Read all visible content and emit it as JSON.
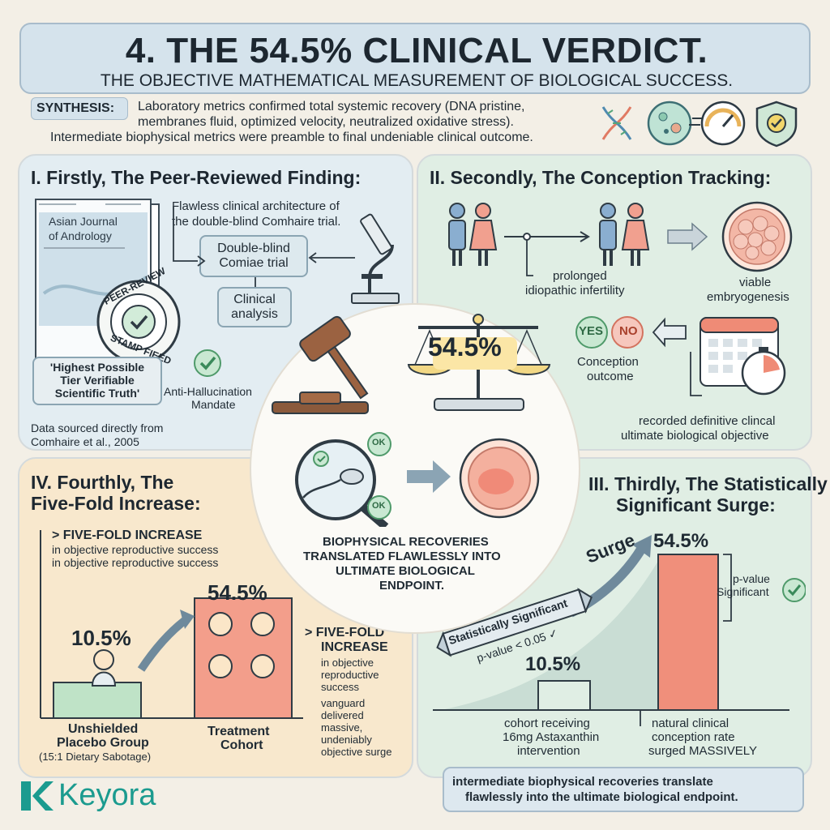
{
  "header": {
    "title": "4. THE 54.5% CLINICAL VERDICT.",
    "subtitle": "THE OBJECTIVE MATHEMATICAL MEASUREMENT OF BIOLOGICAL SUCCESS."
  },
  "synthesis": {
    "label": "SYNTHESIS:",
    "line1": "Laboratory metrics confirmed total systemic recovery (DNA pristine,",
    "line2": "membranes fluid, optimized velocity, neutralized oxidative stress).",
    "line3": "Intermediate biophysical metrics were preamble to final undeniable clinical outcome.",
    "icons": [
      "dna-icon",
      "cell-icon",
      "speedometer-icon",
      "shield-check-icon"
    ]
  },
  "q1": {
    "title": "I. Firstly, The Peer-Reviewed Finding:",
    "journal_line1": "Asian Journal",
    "journal_line2": "of Andrology",
    "stamp_top": "PEER-REVIEW",
    "stamp_bottom": "STAMP FIEED",
    "architecture_line1": "Flawless clinical architecture of",
    "architecture_line2": "the double-blind Comhaire trial.",
    "trial_line1": "Double-blind",
    "trial_line2": "Comiae trial",
    "analysis_line1": "Clinical",
    "analysis_line2": "analysis",
    "quote_line1": "'Highest Possible",
    "quote_line2": "Tier Verifiable",
    "quote_line3": "Scientific Truth'",
    "mandate_line1": "Anti-Hallucination",
    "mandate_line2": "Mandate",
    "source_line1": "Data sourced directly from",
    "source_line2": "Comhaire et al., 2005"
  },
  "q2": {
    "title": "II. Secondly, The Conception Tracking:",
    "infertility_line1": "prolonged",
    "infertility_line2": "idiopathic infertility",
    "embryo_line1": "viable",
    "embryo_line2": "embryogenesis",
    "yes": "YES",
    "no": "NO",
    "outcome_line1": "Conception",
    "outcome_line2": "outcome",
    "recorded_line1": "recorded definitive clincal",
    "recorded_line2": "ultimate biological objective"
  },
  "center": {
    "scale_value": "54.5%",
    "ok": "OK",
    "caption_line1": "BIOPHYSICAL RECOVERIES",
    "caption_line2": "TRANSLATED FLAWLESSLY INTO",
    "caption_line3": "ULTIMATE BIOLOGICAL",
    "caption_line4": "ENDPOINT."
  },
  "q4": {
    "title_line1": "IV. Fourthly, The",
    "title_line2": "Five-Fold Increase:",
    "increase_head": "> FIVE-FOLD INCREASE",
    "increase_sub1": "in objective reproductive success",
    "increase_sub2": "in objective reproductive success",
    "placebo_value": "10.5%",
    "treatment_value": "54.5%",
    "placebo_line1": "Unshielded",
    "placebo_line2": "Placebo Group",
    "placebo_line3": "(15:1 Dietary Sabotage)",
    "treatment_line1": "Treatment",
    "treatment_line2": "Cohort",
    "side_head1": "> FIVE-FOLD",
    "side_head2": "INCREASE",
    "side_sub1": "in objective",
    "side_sub2": "reproductive",
    "side_sub3": "success",
    "side_b1": "vanguard",
    "side_b2": "delivered",
    "side_b3": "massive,",
    "side_b4": "undeniably",
    "side_b5": "objective surge"
  },
  "q3": {
    "title_line1": "III. Thirdly, The Statistically",
    "title_line2": "Significant Surge:",
    "surge": "Surge",
    "banner": "Statistically Significant",
    "pvalue": "p-value < 0.05 ✓",
    "high_value": "54.5%",
    "low_value": "10.5%",
    "pv_label1": "p-value",
    "pv_label2": "Significant",
    "cohort_line1": "cohort receiving",
    "cohort_line2": "16mg Astaxanthin",
    "cohort_line3": "intervention",
    "natural_line1": "natural clinical",
    "natural_line2": "conception rate",
    "natural_line3": "surged MASSIVELY"
  },
  "footer": {
    "callout_line1": "intermediate biophysical recoveries translate",
    "callout_line2": "flawlessly into the ultimate biological endpoint.",
    "brand": "Keyora"
  },
  "colors": {
    "accent_salmon": "#ec8a78",
    "accent_green": "#57a87c",
    "accent_blue": "#5a8ab3",
    "brand_teal": "#1b9b8f"
  }
}
